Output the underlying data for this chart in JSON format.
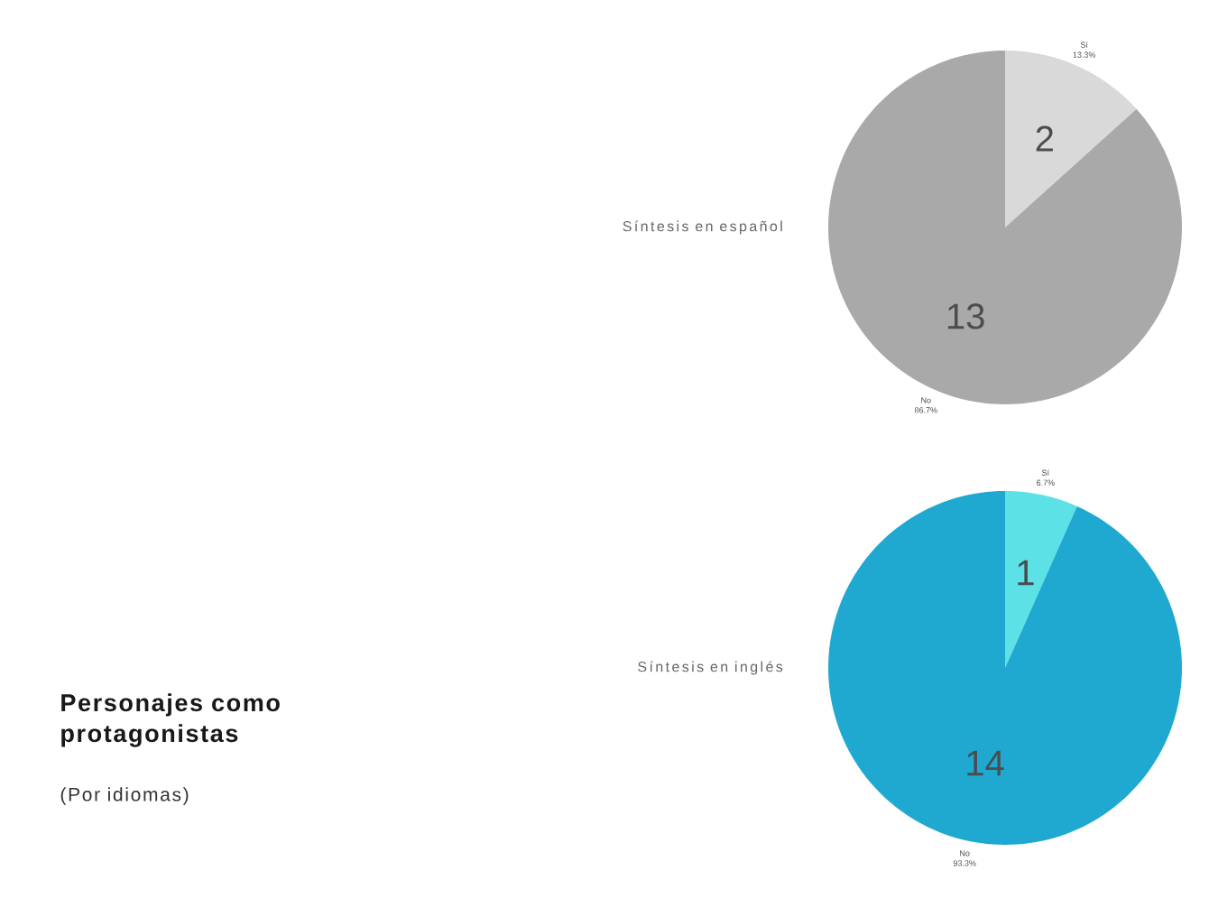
{
  "chart_data": [
    {
      "type": "pie",
      "title": "Síntesis en español",
      "categories": [
        "Sí",
        "No"
      ],
      "values": [
        2,
        13
      ],
      "colors": [
        "#d9d9d9",
        "#a9a9a9"
      ],
      "data_labels": true,
      "annotations": [
        "13.3%",
        "86.7%"
      ]
    },
    {
      "type": "pie",
      "title": "Síntesis en inglés",
      "categories": [
        "Sí",
        "No"
      ],
      "values": [
        1,
        14
      ],
      "colors": [
        "#5ce1e6",
        "#1fa9d1"
      ],
      "data_labels": true,
      "annotations": [
        "6.7%",
        "93.3%"
      ]
    },
    {
      "type": "other",
      "title": "Personajes como protagonistas",
      "subtitle": "(Por idiomas)"
    }
  ]
}
